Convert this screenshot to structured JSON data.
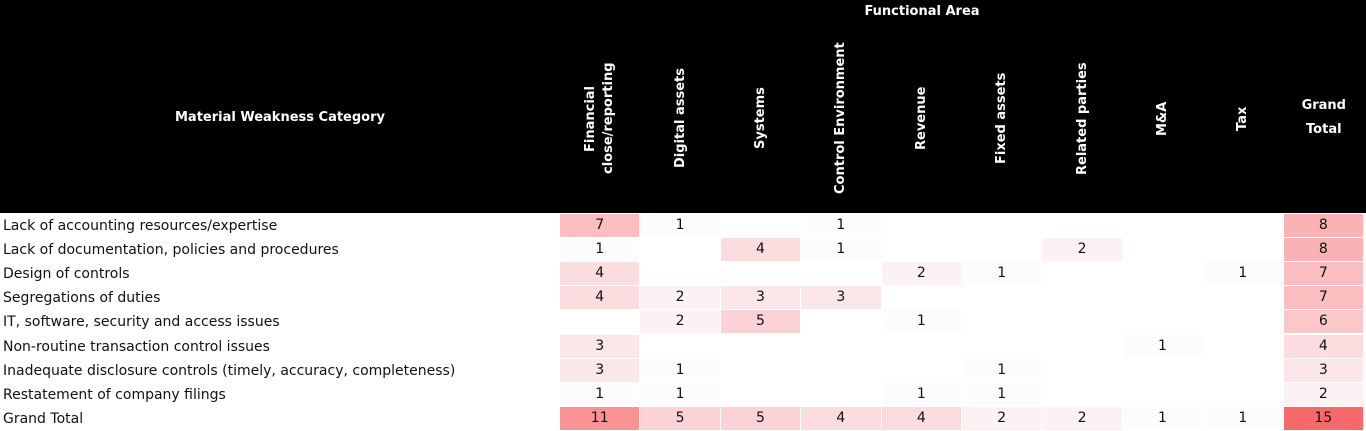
{
  "header": {
    "column_group": "Functional Area",
    "row_header": "Material Weakness Category",
    "columns": [
      "Financial close/reporting",
      "Digital assets",
      "Systems",
      "Control Environment",
      "Revenue",
      "Fixed assets",
      "Related parties",
      "M&A",
      "Tax",
      "Grand Total"
    ]
  },
  "rows": [
    {
      "label": "Lack of accounting resources/expertise",
      "values": [
        7,
        1,
        null,
        1,
        null,
        null,
        null,
        null,
        null,
        8
      ]
    },
    {
      "label": "Lack of documentation, policies and procedures",
      "values": [
        1,
        null,
        4,
        1,
        null,
        null,
        2,
        null,
        null,
        8
      ]
    },
    {
      "label": "Design of controls",
      "values": [
        4,
        null,
        null,
        null,
        2,
        1,
        null,
        null,
        1,
        7
      ]
    },
    {
      "label": "Segregations of duties",
      "values": [
        4,
        2,
        3,
        3,
        null,
        null,
        null,
        null,
        null,
        7
      ]
    },
    {
      "label": "IT, software, security and access issues",
      "values": [
        null,
        2,
        5,
        null,
        1,
        null,
        null,
        null,
        null,
        6
      ]
    },
    {
      "label": "Non-routine transaction control issues",
      "values": [
        3,
        null,
        null,
        null,
        null,
        null,
        null,
        1,
        null,
        4
      ]
    },
    {
      "label": "Inadequate disclosure controls (timely, accuracy, completeness)",
      "values": [
        3,
        1,
        null,
        null,
        null,
        1,
        null,
        null,
        null,
        3
      ]
    },
    {
      "label": "Restatement of company filings",
      "values": [
        1,
        1,
        null,
        null,
        1,
        1,
        null,
        null,
        null,
        2
      ]
    }
  ],
  "total": {
    "label": "Grand Total",
    "values": [
      11,
      5,
      5,
      4,
      4,
      2,
      2,
      1,
      1,
      15
    ]
  }
}
